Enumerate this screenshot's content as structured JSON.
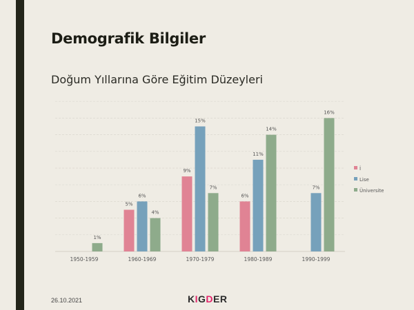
{
  "slide": {
    "title": "Demografik Bilgiler",
    "subtitle": "Doğum Yıllarına Göre Eğitim Düzeyleri",
    "date": "26.10.2021",
    "logo": "KIGDER"
  },
  "chart_data": {
    "type": "bar",
    "title": "Doğum Yıllarına Göre Eğitim Düzeyleri",
    "xlabel": "",
    "ylabel": "",
    "ylim": [
      0,
      18
    ],
    "grid": true,
    "legend_position": "right",
    "categories": [
      "1950-1959",
      "1960-1969",
      "1970-1979",
      "1980-1989",
      "1990-1999"
    ],
    "series": [
      {
        "name": "İ",
        "color": "#e08394",
        "values": [
          null,
          5,
          9,
          6,
          null
        ],
        "labels": [
          "",
          "5%",
          "9%",
          "6%",
          ""
        ]
      },
      {
        "name": "Lise",
        "color": "#76a1bb",
        "values": [
          null,
          6,
          15,
          11,
          7
        ],
        "labels": [
          "",
          "6%",
          "15%",
          "11%",
          "7%"
        ]
      },
      {
        "name": "Üniversite",
        "color": "#8eab8b",
        "values": [
          1,
          4,
          7,
          14,
          16
        ],
        "labels": [
          "1%",
          "4%",
          "7%",
          "14%",
          "16%"
        ]
      }
    ]
  }
}
